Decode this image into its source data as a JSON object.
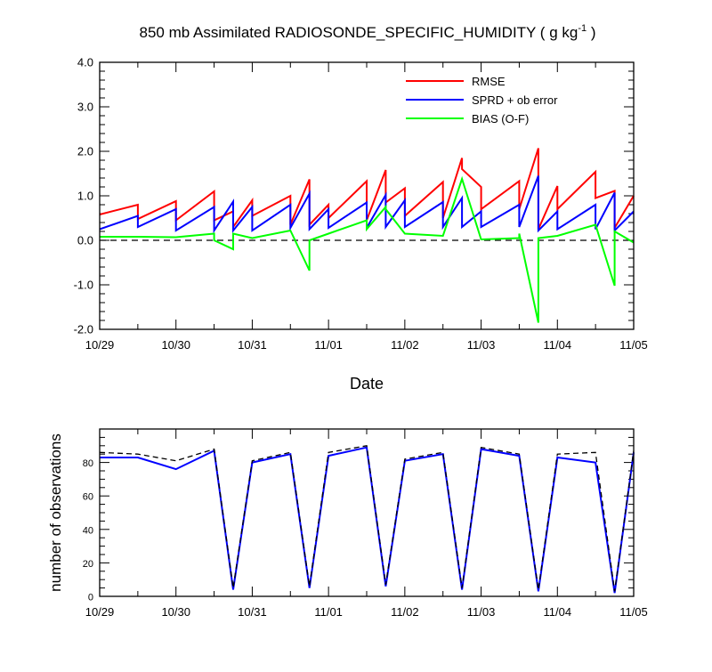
{
  "title": {
    "main": "850 mb Assimilated RADIOSONDE_SPECIFIC_HUMIDITY ( g kg",
    "sup": "-1",
    "close": " )"
  },
  "chart_data": [
    {
      "type": "line",
      "name": "top-panel",
      "xlabel": "Date",
      "ylabel": "",
      "xlim": [
        0,
        7
      ],
      "ylim": [
        -2.0,
        4.0
      ],
      "yticks": [
        -2.0,
        -1.0,
        0.0,
        1.0,
        2.0,
        3.0,
        4.0
      ],
      "ytick_labels": [
        "-2.0",
        "-1.0",
        "0.0",
        "1.0",
        "2.0",
        "3.0",
        "4.0"
      ],
      "xtick_labels": [
        "10/29",
        "10/30",
        "10/31",
        "11/01",
        "11/02",
        "11/03",
        "11/04",
        "11/05"
      ],
      "zero_line": true,
      "legend_position": "top-right",
      "series": [
        {
          "name": "RMSE",
          "color": "#ff0000",
          "x": [
            0,
            0.5,
            0.5,
            1.0,
            1.0,
            1.5,
            1.5,
            1.75,
            1.75,
            2.0,
            2.0,
            2.5,
            2.5,
            2.75,
            2.75,
            3.0,
            3.0,
            3.5,
            3.5,
            3.75,
            3.75,
            4.0,
            4.0,
            4.5,
            4.5,
            4.75,
            4.75,
            5.0,
            5.0,
            5.5,
            5.5,
            5.75,
            5.75,
            6.0,
            6.0,
            6.5,
            6.5,
            6.75,
            6.75,
            7.0
          ],
          "y": [
            0.58,
            0.8,
            0.48,
            0.88,
            0.45,
            1.1,
            0.45,
            0.65,
            0.3,
            0.9,
            0.55,
            1.0,
            0.35,
            1.37,
            0.35,
            0.8,
            0.5,
            1.33,
            0.45,
            1.58,
            0.85,
            1.17,
            0.55,
            1.31,
            0.5,
            1.85,
            1.6,
            1.2,
            0.7,
            1.33,
            0.7,
            2.07,
            0.25,
            1.22,
            0.7,
            1.54,
            0.95,
            1.11,
            0.28,
            1.0
          ]
        },
        {
          "name": "SPRD + ob error",
          "color": "#0000ff",
          "x": [
            0,
            0.5,
            0.5,
            1.0,
            1.0,
            1.5,
            1.5,
            1.75,
            1.75,
            2.0,
            2.0,
            2.5,
            2.5,
            2.75,
            2.75,
            3.0,
            3.0,
            3.5,
            3.5,
            3.75,
            3.75,
            4.0,
            4.0,
            4.5,
            4.5,
            4.75,
            4.75,
            5.0,
            5.0,
            5.5,
            5.5,
            5.75,
            5.75,
            6.0,
            6.0,
            6.5,
            6.5,
            6.75,
            6.75,
            7.0
          ],
          "y": [
            0.25,
            0.55,
            0.3,
            0.7,
            0.22,
            0.75,
            0.22,
            0.87,
            0.22,
            0.75,
            0.22,
            0.8,
            0.28,
            1.05,
            0.25,
            0.7,
            0.28,
            0.85,
            0.28,
            1.02,
            0.3,
            0.9,
            0.3,
            0.86,
            0.3,
            0.95,
            0.3,
            0.65,
            0.3,
            0.8,
            0.3,
            1.45,
            0.22,
            0.65,
            0.25,
            0.8,
            0.25,
            1.07,
            0.22,
            0.65
          ]
        },
        {
          "name": "BIAS (O-F)",
          "color": "#00ff00",
          "x": [
            0,
            0.5,
            1.0,
            1.5,
            1.5,
            1.75,
            1.75,
            2.0,
            2.5,
            2.75,
            2.75,
            3.0,
            3.5,
            3.5,
            3.75,
            3.75,
            4.0,
            4.5,
            4.75,
            5.0,
            5.5,
            5.5,
            5.75,
            5.75,
            6.0,
            6.5,
            6.75,
            6.75,
            7.0
          ],
          "y": [
            0.08,
            0.08,
            0.07,
            0.15,
            0.0,
            -0.2,
            0.15,
            0.05,
            0.22,
            -0.68,
            0.0,
            0.15,
            0.45,
            0.25,
            0.75,
            0.7,
            0.15,
            0.1,
            1.38,
            0.02,
            0.05,
            0.15,
            -1.85,
            0.05,
            0.1,
            0.35,
            -1.02,
            0.2,
            -0.05
          ]
        }
      ]
    },
    {
      "type": "line",
      "name": "bottom-panel",
      "xlabel": "",
      "ylabel": "number of observations",
      "xlim": [
        0,
        7
      ],
      "ylim": [
        0,
        100
      ],
      "yticks": [
        0,
        20,
        40,
        60,
        80
      ],
      "ytick_labels": [
        "0",
        "20",
        "40",
        "60",
        "80"
      ],
      "xtick_labels": [
        "10/29",
        "10/30",
        "10/31",
        "11/01",
        "11/02",
        "11/03",
        "11/04",
        "11/05"
      ],
      "series": [
        {
          "color": "#0000ff",
          "dash": false,
          "x": [
            0,
            0.5,
            1.0,
            1.5,
            1.75,
            2.0,
            2.5,
            2.75,
            3.0,
            3.5,
            3.75,
            4.0,
            4.5,
            4.75,
            5.0,
            5.5,
            5.75,
            6.0,
            6.5,
            6.75,
            7.0
          ],
          "y": [
            83,
            83,
            76,
            87,
            4,
            80,
            85,
            5,
            84,
            89,
            6,
            81,
            85,
            4,
            88,
            84,
            3,
            83,
            80,
            2,
            86
          ]
        },
        {
          "color": "#000000",
          "dash": true,
          "x": [
            0,
            0.5,
            1.0,
            1.5,
            1.75,
            2.0,
            2.5,
            2.75,
            3.0,
            3.5,
            3.75,
            4.0,
            4.5,
            4.75,
            5.0,
            5.5,
            5.75,
            6.0,
            6.5,
            6.75,
            7.0
          ],
          "y": [
            86,
            85,
            81,
            88,
            5,
            81,
            86,
            6,
            86,
            90,
            7,
            82,
            86,
            5,
            89,
            85,
            4,
            85,
            86,
            3,
            87
          ]
        }
      ]
    }
  ]
}
